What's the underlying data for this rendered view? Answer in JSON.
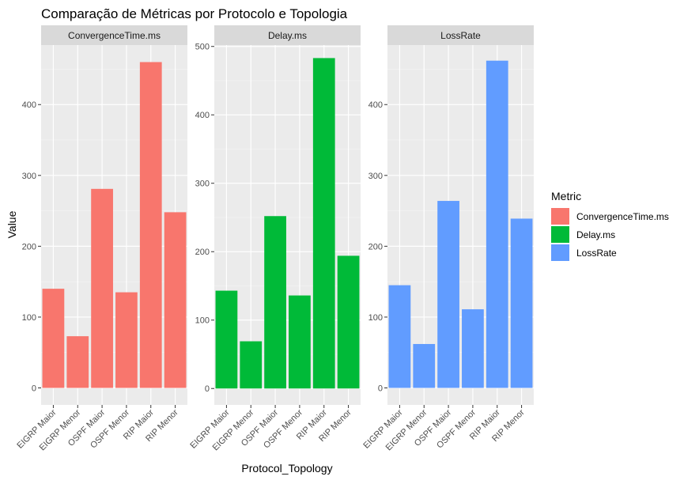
{
  "chart_data": {
    "type": "bar",
    "title": "Comparação de Métricas por Protocolo e Topologia",
    "xlabel": "Protocol_Topology",
    "ylabel": "Value",
    "categories": [
      "EIGRP Maior",
      "EIGRP Menor",
      "OSPF Maior",
      "OSPF Menor",
      "RIP Maior",
      "RIP Menor"
    ],
    "legend": {
      "title": "Metric",
      "position": "right"
    },
    "grid": true,
    "facets": [
      {
        "name": "ConvergenceTime.ms",
        "color": "#F8766D",
        "ylim": [
          -24,
          484
        ],
        "ticks": [
          0,
          100,
          200,
          300,
          400
        ],
        "values": [
          140,
          73,
          281,
          135,
          460,
          248
        ]
      },
      {
        "name": "Delay.ms",
        "color": "#00BA38",
        "ylim": [
          -24,
          502
        ],
        "ticks": [
          0,
          100,
          200,
          300,
          400,
          500
        ],
        "values": [
          143,
          69,
          252,
          136,
          483,
          194
        ]
      },
      {
        "name": "LossRate",
        "color": "#619CFF",
        "ylim": [
          -24,
          484
        ],
        "ticks": [
          0,
          100,
          200,
          300,
          400
        ],
        "values": [
          145,
          62,
          264,
          111,
          462,
          239
        ]
      }
    ]
  }
}
